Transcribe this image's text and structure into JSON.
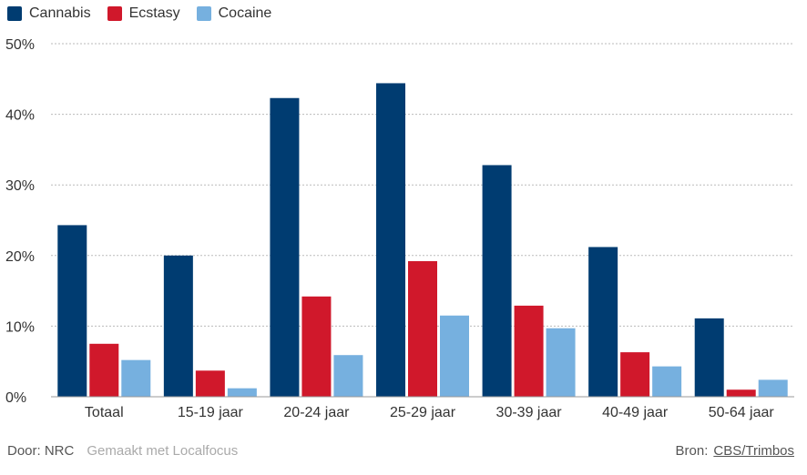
{
  "legend": {
    "items": [
      {
        "label": "Cannabis",
        "color": "#003c71"
      },
      {
        "label": "Ecstasy",
        "color": "#d0182b"
      },
      {
        "label": "Cocaine",
        "color": "#76b0df"
      }
    ]
  },
  "footer": {
    "credit": "Door: NRC",
    "made_with": "Gemaakt met Localfocus",
    "source_prefix": "Bron:",
    "source_link": "CBS/Trimbos"
  },
  "chart_data": {
    "type": "bar",
    "categories": [
      "Totaal",
      "15-19 jaar",
      "20-24 jaar",
      "25-29 jaar",
      "30-39 jaar",
      "40-49 jaar",
      "50-64 jaar"
    ],
    "series": [
      {
        "name": "Cannabis",
        "color": "#003c71",
        "values": [
          24.3,
          20.0,
          42.3,
          44.4,
          32.8,
          21.2,
          11.1
        ]
      },
      {
        "name": "Ecstasy",
        "color": "#d0182b",
        "values": [
          7.5,
          3.7,
          14.2,
          19.2,
          12.9,
          6.3,
          1.0
        ]
      },
      {
        "name": "Cocaine",
        "color": "#76b0df",
        "values": [
          5.2,
          1.2,
          5.9,
          11.5,
          9.7,
          4.3,
          2.4
        ]
      }
    ],
    "ylim": [
      0,
      50
    ],
    "yticks": [
      0,
      10,
      20,
      30,
      40,
      50
    ],
    "ytick_labels": [
      "0%",
      "10%",
      "20%",
      "30%",
      "40%",
      "50%"
    ],
    "grid": true,
    "legend_position": "top-left"
  }
}
